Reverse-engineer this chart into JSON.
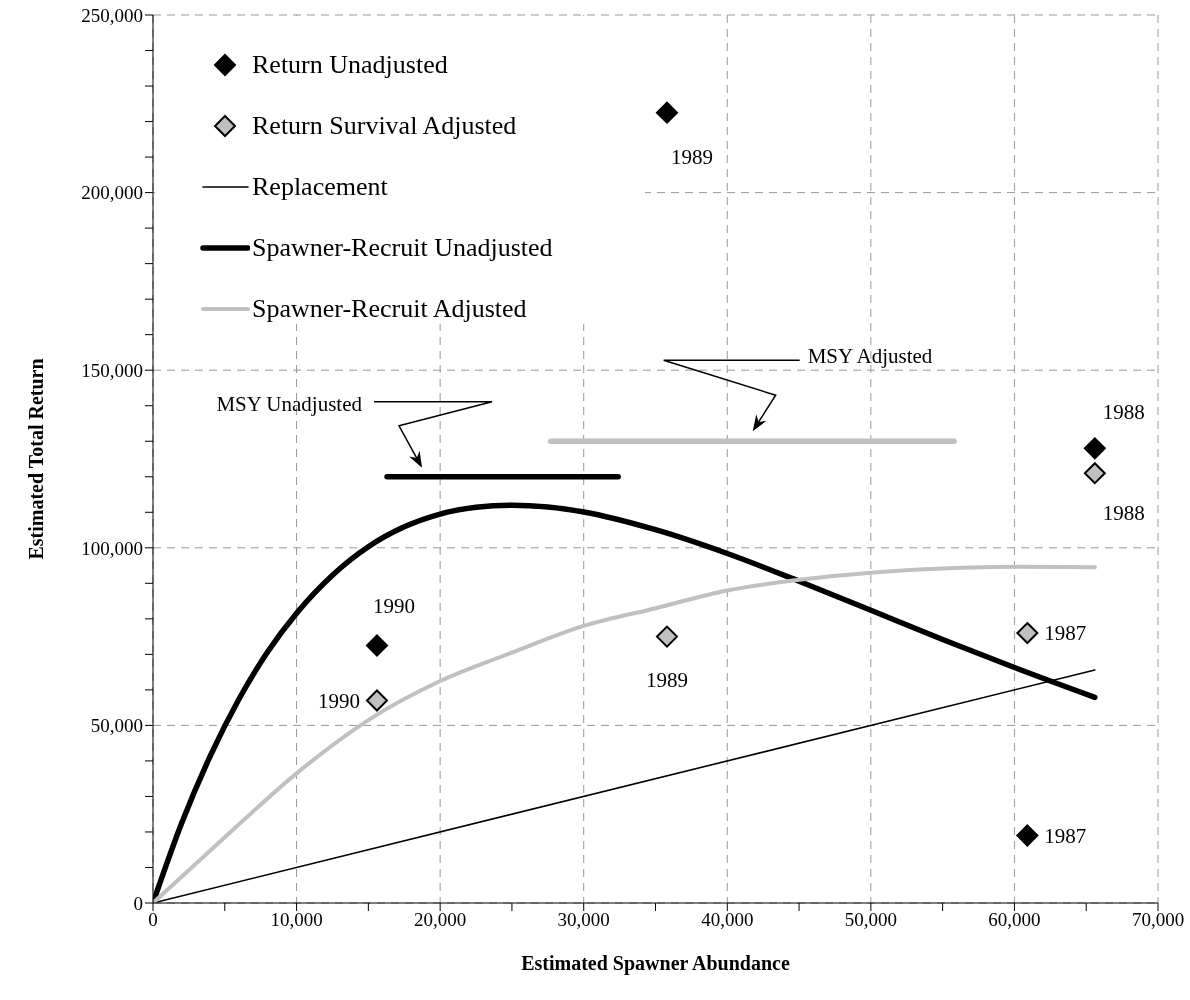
{
  "chart_data": {
    "type": "line",
    "xlabel": "Estimated Spawner Abundance",
    "ylabel": "Estimated Total Return",
    "xlim": [
      0,
      70000
    ],
    "xticks": [
      {
        "value": 0,
        "label": "0"
      },
      {
        "value": 5000,
        "label": null
      },
      {
        "value": 10000,
        "label": "10,000"
      },
      {
        "value": 15000,
        "label": null
      },
      {
        "value": 20000,
        "label": "20,000"
      },
      {
        "value": 25000,
        "label": null
      },
      {
        "value": 30000,
        "label": "30,000"
      },
      {
        "value": 35000,
        "label": null
      },
      {
        "value": 40000,
        "label": "40,000"
      },
      {
        "value": 45000,
        "label": null
      },
      {
        "value": 50000,
        "label": "50,000"
      },
      {
        "value": 55000,
        "label": null
      },
      {
        "value": 60000,
        "label": "60,000"
      },
      {
        "value": 65000,
        "label": null
      },
      {
        "value": 70000,
        "label": "70,000"
      }
    ],
    "ylim": [
      0,
      250000
    ],
    "yticks": [
      {
        "value": 0,
        "label": "0"
      },
      {
        "value": 10000,
        "label": null
      },
      {
        "value": 20000,
        "label": null
      },
      {
        "value": 30000,
        "label": null
      },
      {
        "value": 40000,
        "label": null
      },
      {
        "value": 50000,
        "label": "50,000"
      },
      {
        "value": 60000,
        "label": null
      },
      {
        "value": 70000,
        "label": null
      },
      {
        "value": 80000,
        "label": null
      },
      {
        "value": 90000,
        "label": null
      },
      {
        "value": 100000,
        "label": "100,000"
      },
      {
        "value": 110000,
        "label": null
      },
      {
        "value": 120000,
        "label": null
      },
      {
        "value": 130000,
        "label": null
      },
      {
        "value": 140000,
        "label": null
      },
      {
        "value": 150000,
        "label": "150,000"
      },
      {
        "value": 160000,
        "label": null
      },
      {
        "value": 170000,
        "label": null
      },
      {
        "value": 180000,
        "label": null
      },
      {
        "value": 190000,
        "label": null
      },
      {
        "value": 200000,
        "label": "200,000"
      },
      {
        "value": 210000,
        "label": null
      },
      {
        "value": 220000,
        "label": null
      },
      {
        "value": 230000,
        "label": null
      },
      {
        "value": 240000,
        "label": null
      },
      {
        "value": 250000,
        "label": "250,000"
      }
    ],
    "grid": true,
    "legend": "top left",
    "series": [
      {
        "type": "scatter",
        "name": "Return Unadjusted",
        "color": "#000000",
        "marker": "diamond",
        "x": [
          60900,
          65600,
          35800,
          15600
        ],
        "values": [
          19000,
          128000,
          222500,
          72500
        ]
      },
      {
        "type": "scatter",
        "name": "Return Survival Adjusted",
        "color": "#c0c0c0",
        "marker": "diamond",
        "x": [
          60900,
          65600,
          35800,
          15600
        ],
        "values": [
          76000,
          121000,
          75000,
          57000
        ]
      },
      {
        "name": "Replacement",
        "color": "#000000",
        "x": [
          0,
          65600
        ],
        "values": [
          0,
          65600
        ]
      },
      {
        "name": "Spawner-Recruit Unadjusted",
        "color": "#000000",
        "x": [
          0,
          2000,
          4000,
          6000,
          8000,
          10000,
          12500,
          15000,
          17500,
          20000,
          22500,
          25000,
          27500,
          30000,
          35000,
          40000,
          45000,
          50000,
          55000,
          60000,
          65600
        ],
        "values": [
          0,
          22500,
          41500,
          57500,
          70800,
          81600,
          92300,
          100300,
          105900,
          109500,
          111400,
          112000,
          111500,
          110100,
          105100,
          98400,
          90600,
          82400,
          74200,
          66300,
          57900
        ]
      },
      {
        "name": "Spawner-Recruit Adjusted",
        "color": "#c0c0c0",
        "x": [
          0,
          5000,
          10000,
          15000,
          20000,
          25000,
          30000,
          35000,
          40000,
          45000,
          50000,
          55000,
          60000,
          65600
        ],
        "values": [
          0,
          18500,
          36500,
          51500,
          62500,
          70500,
          78000,
          83000,
          88000,
          91000,
          93000,
          94200,
          94700,
          94500
        ]
      },
      {
        "color": "#000000",
        "x": [
          16300,
          32400
        ],
        "values": [
          120000,
          120000
        ]
      },
      {
        "color": "#c0c0c0",
        "x": [
          27700,
          55800
        ],
        "values": [
          130000,
          130000
        ]
      }
    ],
    "annotations": [
      "MSY Unadjusted",
      "MSY Adjusted",
      {
        "text": "1987",
        "x": 60900,
        "y": 19000
      },
      {
        "text": "1988",
        "x": 65600,
        "y": 128000
      },
      {
        "text": "1989",
        "x": 35800,
        "y": 222500
      },
      {
        "text": "1990",
        "x": 15600,
        "y": 72500
      },
      {
        "text": "1987",
        "x": 60900,
        "y": 76000
      },
      {
        "text": "1988",
        "x": 65600,
        "y": 121000
      },
      {
        "text": "1989",
        "x": 35800,
        "y": 75000
      },
      {
        "text": "1990",
        "x": 15600,
        "y": 57000
      }
    ]
  }
}
